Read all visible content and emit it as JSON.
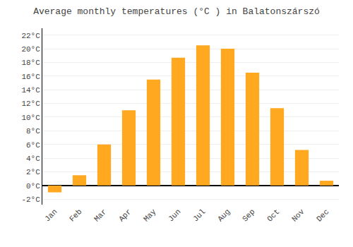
{
  "chart_data": {
    "type": "bar",
    "title": "Average monthly temperatures (°C ) in Balatonszárszó",
    "categories": [
      "Jan",
      "Feb",
      "Mar",
      "Apr",
      "May",
      "Jun",
      "Jul",
      "Aug",
      "Sep",
      "Oct",
      "Nov",
      "Dec"
    ],
    "values": [
      -1.0,
      1.5,
      6.0,
      11.0,
      15.5,
      18.7,
      20.5,
      20.0,
      16.5,
      11.3,
      5.2,
      0.7
    ],
    "color": "#FFA820",
    "ylim": [
      -2.8,
      23.0
    ],
    "yticks": [
      {
        "value": 22,
        "label": "22°C"
      },
      {
        "value": 20,
        "label": "20°C"
      },
      {
        "value": 18,
        "label": "18°C"
      },
      {
        "value": 16,
        "label": "16°C"
      },
      {
        "value": 14,
        "label": "14°C"
      },
      {
        "value": 12,
        "label": "12°C"
      },
      {
        "value": 10,
        "label": "10°C"
      },
      {
        "value": 8,
        "label": "8°C"
      },
      {
        "value": 6,
        "label": "6°C"
      },
      {
        "value": 4,
        "label": "4°C"
      },
      {
        "value": 2,
        "label": "2°C"
      },
      {
        "value": 0,
        "label": "0°C"
      },
      {
        "value": -2,
        "label": "-2°C"
      }
    ],
    "grid": true
  }
}
